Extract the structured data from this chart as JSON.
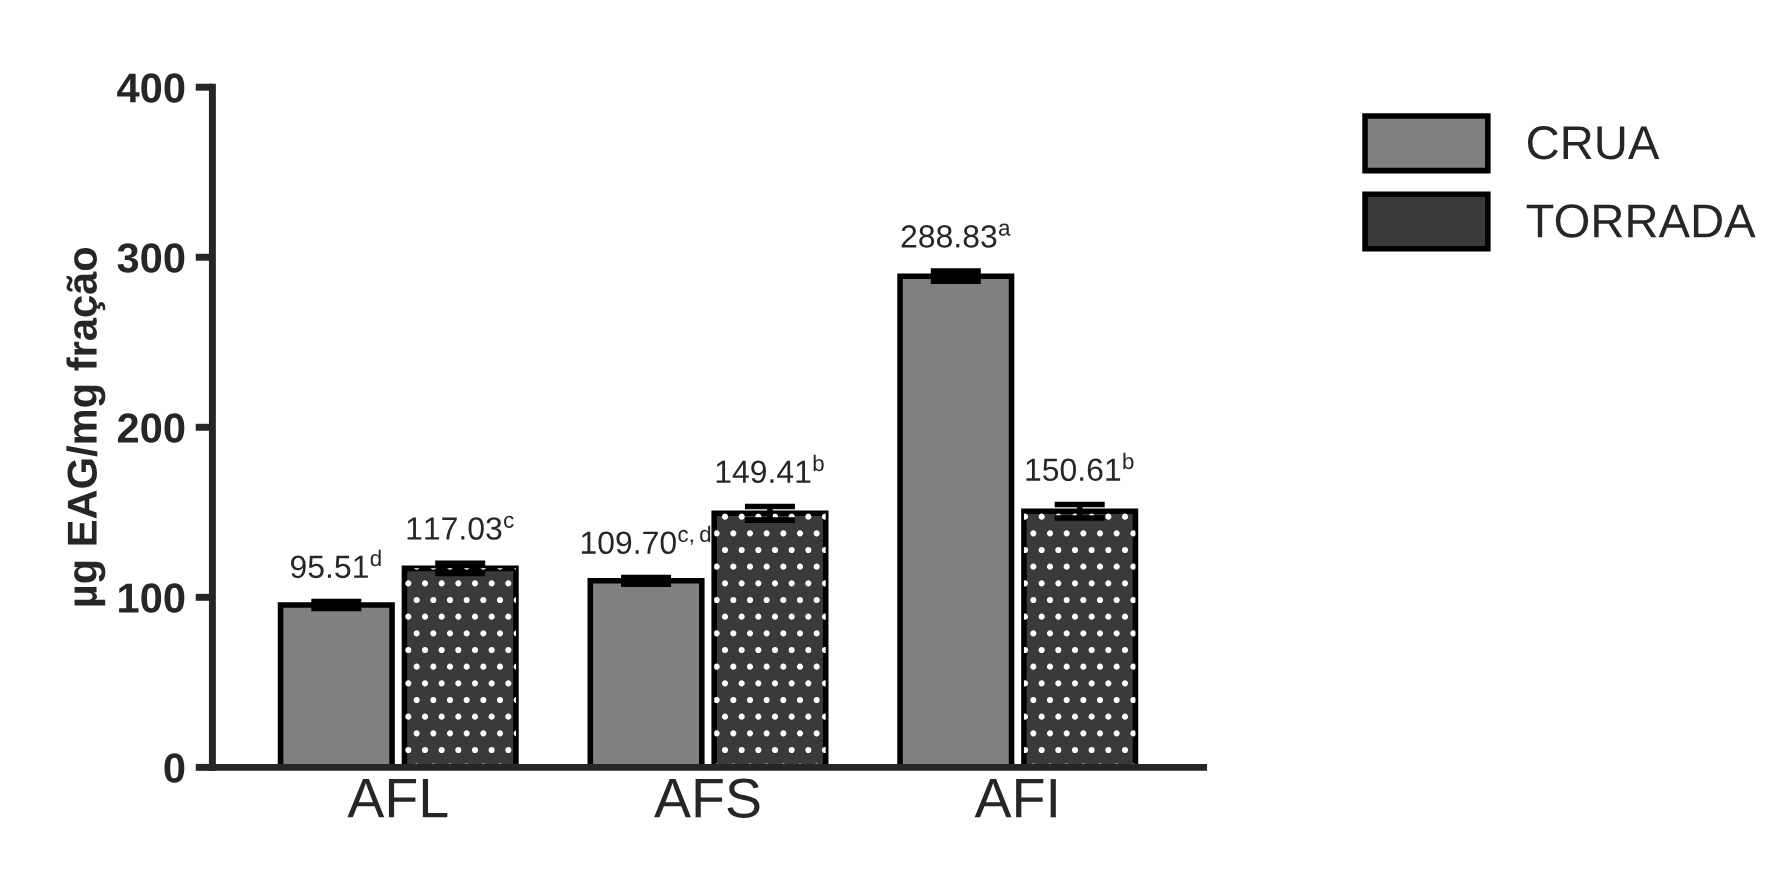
{
  "chart_data": {
    "type": "bar",
    "ylabel": "µg EAG/mg fração",
    "categories": [
      "AFL",
      "AFS",
      "AFI"
    ],
    "series": [
      {
        "name": "CRUA",
        "color": "#808080",
        "values": [
          95.51,
          109.7,
          288.83
        ],
        "errors": [
          2,
          2,
          3
        ],
        "value_labels": [
          "95.51$^{d}$",
          "109.70$^{c,d}$",
          "288.83$^{a}$"
        ]
      },
      {
        "name": "TORRADA",
        "color": "#3a3a3a",
        "values": [
          117.03,
          149.41,
          150.61
        ],
        "errors": [
          3,
          4,
          4
        ],
        "value_labels": [
          "117.03$^{c}$",
          "149.41$^{b}$",
          "150.61$^{b}$"
        ]
      }
    ],
    "ylim": [
      0,
      400
    ],
    "yticks": [
      0,
      100,
      200,
      300,
      400
    ],
    "grid": false,
    "legend": "top right"
  }
}
